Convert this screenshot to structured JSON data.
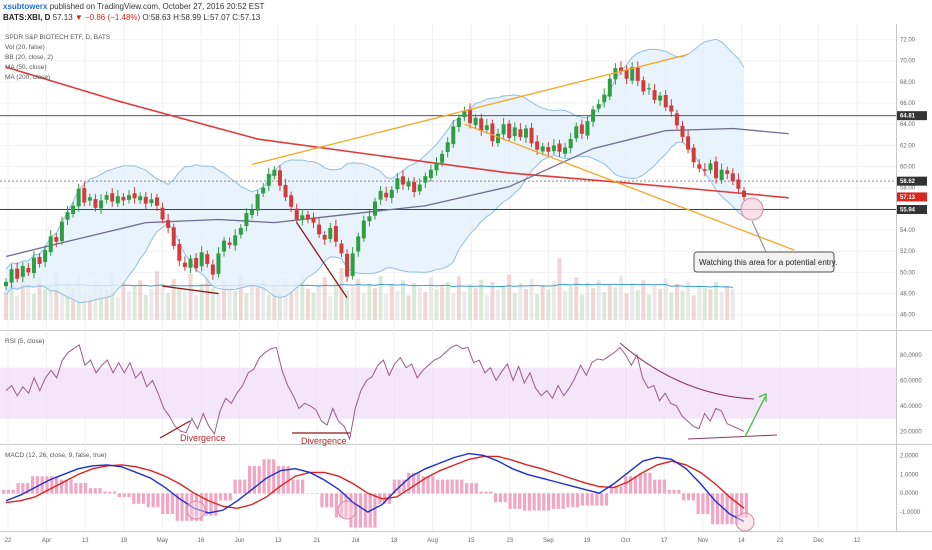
{
  "header": {
    "author": "xsubtowerx",
    "published": " published on TradingView.com, October 27, 2016 20:52 EST",
    "symbol": "BATS:XBI, D",
    "last": " 57.13 ",
    "change": "▼ −0.86 (−1.48%)",
    "ohlc": " O:58.63 H:58.99 L:57.07 C:57.13"
  },
  "legends": {
    "main": [
      "SPDR S&P BIOTECH ETF, D, BATS",
      "Vol (20, false)",
      "BB (20, close, 2)",
      "MA (50, close)",
      "MA (200, close)"
    ],
    "rsi": "RSI (5, close)",
    "macd": "MACD (12, 26, close, 9, false, true)"
  },
  "annotations": {
    "callout": "Watching this area for a potential entry.",
    "divergence1": "Divergence",
    "divergence2": "Divergence"
  },
  "price_tags": [
    "64.81",
    "58.62",
    "57.13",
    "55.94"
  ],
  "colors": {
    "up": "#2e9e43",
    "down": "#d23b3b",
    "ma200": "#e23a3a",
    "ma50": "#6f6a93",
    "bb": "#8fc0e4",
    "bbfill": "#e3f0fa",
    "channel": "#f5a623",
    "rsi": "#9c5a8e",
    "rsiband": "#f0dcf6",
    "macd": "#1c2fcf",
    "signal": "#dd2222",
    "hist": "#f2a6c3",
    "vol": "#c9c9c9",
    "volma": "#3c9bd7"
  },
  "chart_data": [
    {
      "type": "candlestick",
      "title": "SPDR S&P BIOTECH ETF, D, BATS",
      "ylim": [
        45.5,
        73
      ],
      "y_ticks": [
        "72.00",
        "70.00",
        "68.00",
        "66.00",
        "64.00",
        "62.00",
        "60.00",
        "58.00",
        "56.00",
        "54.00",
        "52.00",
        "50.00",
        "48.00",
        "46.00"
      ],
      "x_ticks": [
        "22",
        "Apr",
        "13",
        "19",
        "May",
        "16",
        "Jun",
        "13",
        "21",
        "Jul",
        "18",
        "Aug",
        "15",
        "23",
        "Sep",
        "19",
        "Oct",
        "17",
        "Nov",
        "14",
        "22",
        "Dec",
        "12"
      ],
      "start_date": "2016-03-22",
      "end_date": "2016-10-27",
      "close": [
        49.1,
        50.3,
        49.4,
        50.6,
        50.0,
        51.4,
        50.8,
        52.1,
        53.4,
        52.9,
        54.8,
        55.7,
        56.3,
        57.9,
        56.6,
        57.1,
        56.1,
        56.8,
        57.3,
        56.7,
        57.2,
        56.8,
        57.3,
        57.0,
        57.2,
        56.5,
        56.9,
        56.3,
        55.0,
        54.2,
        52.5,
        51.1,
        50.5,
        51.3,
        50.4,
        51.9,
        50.8,
        49.8,
        51.8,
        53.0,
        52.6,
        53.5,
        54.2,
        55.6,
        55.9,
        57.4,
        58.0,
        59.3,
        59.7,
        58.2,
        57.1,
        56.2,
        55.0,
        55.4,
        55.0,
        54.7,
        53.6,
        53.1,
        54.2,
        52.9,
        51.8,
        49.6,
        51.8,
        53.4,
        54.9,
        55.3,
        56.7,
        57.7,
        57.1,
        57.8,
        58.9,
        58.3,
        58.6,
        57.6,
        58.3,
        59.1,
        59.7,
        60.3,
        61.2,
        62.3,
        63.8,
        64.6,
        65.2,
        64.1,
        64.6,
        63.4,
        63.9,
        62.4,
        63.1,
        64.0,
        62.7,
        63.7,
        62.8,
        63.6,
        62.2,
        61.6,
        61.9,
        61.4,
        62.0,
        61.4,
        61.8,
        62.6,
        63.8,
        63.1,
        64.3,
        65.4,
        65.9,
        66.8,
        68.3,
        69.3,
        69.0,
        68.3,
        69.4,
        68.1,
        67.1,
        67.4,
        66.3,
        66.7,
        65.6,
        65.2,
        63.9,
        62.8,
        61.6,
        60.4,
        59.8,
        59.6,
        60.3,
        58.9,
        59.7,
        59.3,
        58.6,
        57.9,
        57.13
      ],
      "series": [
        {
          "name": "MA (200, close)",
          "points": [
            [
              0,
              69.4
            ],
            [
              20,
              66.2
            ],
            [
              45,
              62.6
            ],
            [
              70,
              60.8
            ],
            [
              90,
              59.4
            ],
            [
              110,
              58.5
            ],
            [
              130,
              57.55
            ],
            [
              140,
              57.05
            ]
          ]
        },
        {
          "name": "MA (50, close)",
          "points": [
            [
              0,
              51.5
            ],
            [
              10,
              52.8
            ],
            [
              25,
              54.7
            ],
            [
              38,
              55.0
            ],
            [
              48,
              54.7
            ],
            [
              58,
              55.3
            ],
            [
              75,
              56.3
            ],
            [
              90,
              58.1
            ],
            [
              105,
              61.7
            ],
            [
              118,
              63.4
            ],
            [
              130,
              63.6
            ],
            [
              140,
              63.1
            ]
          ]
        }
      ]
    },
    {
      "type": "line",
      "title": "RSI (5, close)",
      "ylim": [
        10,
        95
      ],
      "y_ticks": [
        "80.0000",
        "60.0000",
        "40.0000",
        "20.0000"
      ],
      "band": [
        30,
        70
      ],
      "values": [
        52,
        56,
        48,
        55,
        50,
        62,
        52,
        62,
        68,
        62,
        76,
        82,
        85,
        88,
        72,
        76,
        66,
        72,
        76,
        66,
        74,
        66,
        74,
        62,
        67,
        55,
        60,
        50,
        38,
        32,
        24,
        20,
        19,
        30,
        22,
        34,
        24,
        18,
        36,
        46,
        42,
        50,
        56,
        66,
        69,
        78,
        82,
        85,
        86,
        68,
        56,
        48,
        38,
        42,
        40,
        37,
        28,
        25,
        38,
        28,
        24,
        14,
        38,
        52,
        60,
        63,
        72,
        76,
        64,
        73,
        78,
        70,
        73,
        62,
        68,
        72,
        76,
        78,
        82,
        86,
        88,
        85,
        86,
        74,
        76,
        66,
        70,
        60,
        67,
        73,
        60,
        71,
        58,
        66,
        54,
        48,
        52,
        46,
        56,
        48,
        54,
        62,
        72,
        64,
        74,
        77,
        76,
        79,
        82,
        86,
        80,
        72,
        80,
        62,
        54,
        56,
        44,
        50,
        42,
        40,
        32,
        28,
        24,
        22,
        34,
        28,
        38,
        36,
        26,
        24,
        22,
        20
      ]
    },
    {
      "type": "line",
      "title": "MACD (12, 26, close, 9, false, true)",
      "ylim": [
        -1.9,
        2.45
      ],
      "y_ticks": [
        "2.0000",
        "1.0000",
        "0.0000",
        "-1.0000"
      ],
      "series": [
        {
          "name": "MACD",
          "values": [
            -0.4,
            -0.1,
            0.3,
            0.7,
            1.0,
            1.3,
            1.45,
            1.5,
            1.4,
            1.1,
            0.8,
            0.3,
            -0.3,
            -0.8,
            -1.05,
            -0.9,
            -0.4,
            0.2,
            0.8,
            1.2,
            1.3,
            1.1,
            0.7,
            0.2,
            -0.5,
            -1.0,
            -0.6,
            0.2,
            0.9,
            1.3,
            1.6,
            1.9,
            2.1,
            2.0,
            1.7,
            1.3,
            1.0,
            0.8,
            0.6,
            0.4,
            0.2,
            0.0,
            0.5,
            1.1,
            1.7,
            1.9,
            1.8,
            1.3,
            0.5,
            -0.4,
            -1.1,
            -1.5
          ]
        },
        {
          "name": "Signal",
          "values": [
            -0.5,
            -0.4,
            -0.2,
            0.2,
            0.6,
            1.0,
            1.3,
            1.45,
            1.5,
            1.4,
            1.2,
            0.9,
            0.5,
            0.0,
            -0.4,
            -0.7,
            -0.8,
            -0.6,
            -0.2,
            0.4,
            0.9,
            1.1,
            1.1,
            0.9,
            0.5,
            0.0,
            -0.3,
            -0.2,
            0.3,
            0.8,
            1.2,
            1.5,
            1.8,
            1.95,
            1.95,
            1.75,
            1.5,
            1.3,
            1.05,
            0.8,
            0.55,
            0.35,
            0.3,
            0.6,
            1.1,
            1.5,
            1.7,
            1.5,
            1.1,
            0.5,
            -0.2,
            -0.8
          ]
        }
      ]
    },
    {
      "type": "bar",
      "title": "Vol (20, false)",
      "ylim": [
        0,
        100
      ],
      "values": [
        45,
        60,
        38,
        70,
        52,
        40,
        65,
        48,
        55,
        72,
        42,
        58,
        50,
        66,
        44,
        38,
        62,
        54,
        47,
        70,
        36,
        58,
        44,
        52,
        61,
        39,
        48,
        75,
        56,
        42,
        63,
        50,
        46,
        71,
        38,
        55,
        66,
        49,
        43,
        60,
        52,
        45,
        68,
        41,
        57,
        50,
        64,
        39,
        53,
        47,
        62,
        44,
        58,
        70,
        48,
        42,
        55,
        66,
        37,
        59,
        80,
        46,
        51,
        63,
        42,
        56,
        49,
        68,
        40,
        54,
        45,
        61,
        38,
        57,
        50,
        43,
        65,
        47,
        52,
        59,
        41,
        67,
        44,
        55,
        49,
        62,
        38,
        58,
        46,
        53,
        70,
        42,
        57,
        48,
        63,
        40,
        54,
        47,
        60,
        95,
        45,
        52,
        66,
        39,
        58,
        49,
        62,
        43,
        55,
        50,
        68,
        41,
        57,
        46,
        61,
        39,
        53,
        48,
        64,
        42,
        56,
        45,
        60,
        38,
        54,
        50,
        47,
        59,
        43,
        52,
        48
      ]
    }
  ]
}
